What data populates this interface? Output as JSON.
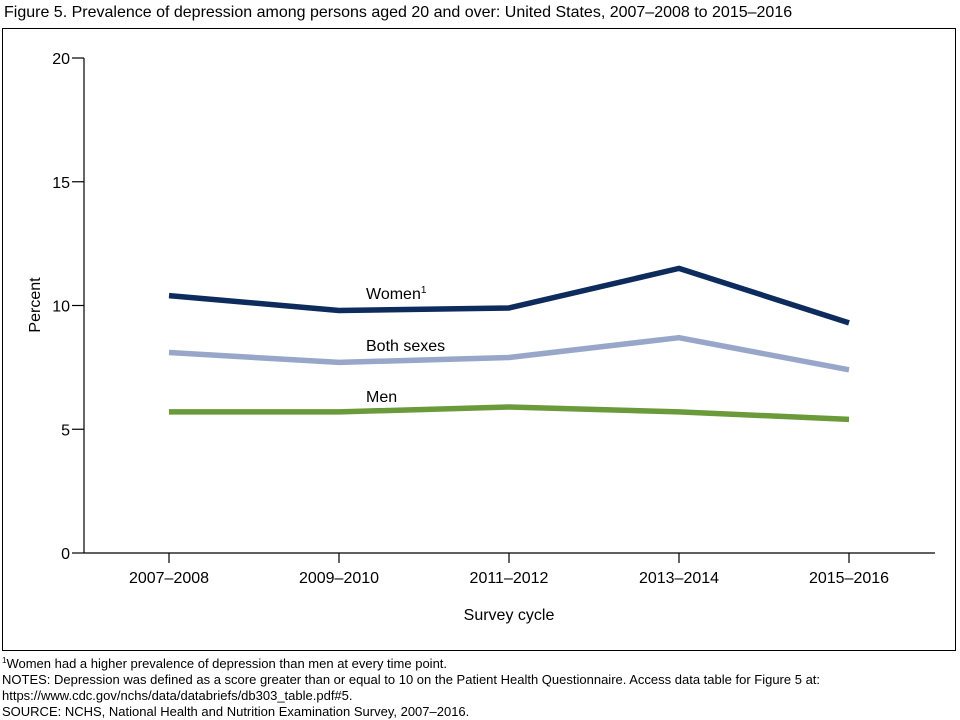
{
  "chart_data": {
    "type": "line",
    "title": "Figure 5. Prevalence of depression among persons aged 20 and over: United States, 2007–2008 to 2015–2016",
    "xlabel": "Survey cycle",
    "ylabel": "Percent",
    "categories": [
      "2007–2008",
      "2009–2010",
      "2011–2012",
      "2013–2014",
      "2015–2016"
    ],
    "series": [
      {
        "name": "Women",
        "name_note": "1",
        "color": "#0d2b5c",
        "values": [
          10.4,
          9.8,
          9.9,
          11.5,
          9.3
        ]
      },
      {
        "name": "Both sexes",
        "color": "#98a6c9",
        "values": [
          8.1,
          7.7,
          7.9,
          8.7,
          7.4
        ]
      },
      {
        "name": "Men",
        "color": "#6b9a3b",
        "values": [
          5.7,
          5.7,
          5.9,
          5.7,
          5.4
        ]
      }
    ],
    "ylim": [
      0,
      20
    ],
    "yticks": [
      0,
      5,
      10,
      15,
      20
    ],
    "footnote": {
      "marker": "1",
      "text": "Women had a higher prevalence of depression than men at every time point."
    },
    "notes": [
      "NOTES: Depression was defined as a score greater than or equal to 10 on the Patient Health Questionnaire. Access data table for Figure 5 at:",
      "https://www.cdc.gov/nchs/data/databriefs/db303_table.pdf#5.",
      "SOURCE: NCHS, National Health and Nutrition Examination Survey, 2007–2016."
    ]
  }
}
